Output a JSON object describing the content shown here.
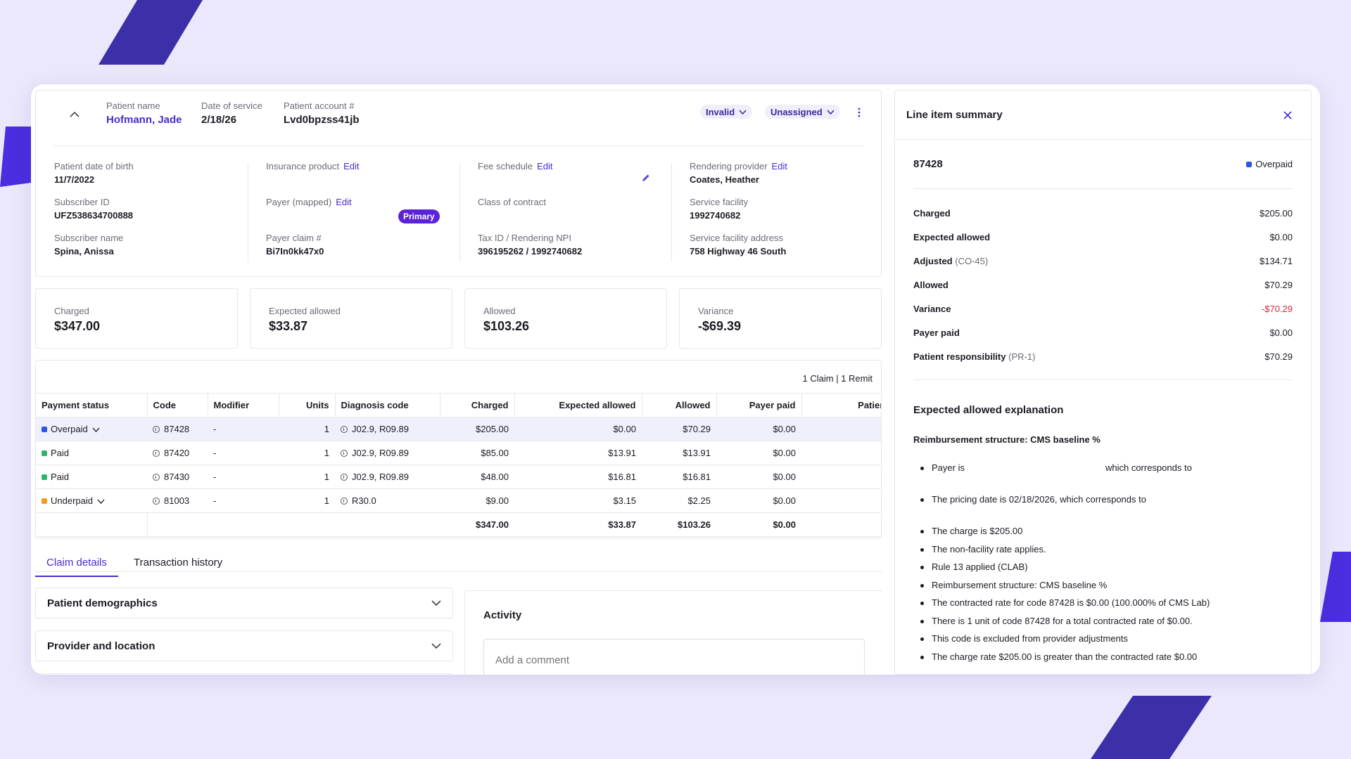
{
  "header": {
    "patient_name_label": "Patient name",
    "patient_name": "Hofmann, Jade",
    "dos_label": "Date of service",
    "dos": "2/18/26",
    "account_label": "Patient account #",
    "account": "Lvd0bpzss41jb",
    "status_pill": "Invalid",
    "assign_pill": "Unassigned"
  },
  "details": {
    "dob_label": "Patient date of birth",
    "dob": "11/7/2022",
    "subscriber_id_label": "Subscriber ID",
    "subscriber_id": "UFZ538634700888",
    "subscriber_name_label": "Subscriber name",
    "subscriber_name": "Spina, Anissa",
    "ins_product_label": "Insurance product",
    "edit": "Edit",
    "payer_mapped_label": "Payer (mapped)",
    "primary_badge": "Primary",
    "payer_claim_label": "Payer claim #",
    "payer_claim": "Bi7In0kk47x0",
    "fee_schedule_label": "Fee schedule",
    "class_label": "Class of contract",
    "tax_label": "Tax ID / Rendering NPI",
    "tax": "396195262 / 1992740682",
    "rendering_label": "Rendering provider",
    "rendering": "Coates, Heather",
    "facility_label": "Service facility",
    "facility": "1992740682",
    "facility_addr_label": "Service facility address",
    "facility_addr": "758 Highway 46 South"
  },
  "summary": [
    {
      "label": "Charged",
      "value": "$347.00"
    },
    {
      "label": "Expected allowed",
      "value": "$33.87"
    },
    {
      "label": "Allowed",
      "value": "$103.26"
    },
    {
      "label": "Variance",
      "value": "-$69.39"
    }
  ],
  "table": {
    "claim_count": "1 Claim | 1 Remit",
    "columns": [
      "Payment status",
      "Code",
      "Modifier",
      "Units",
      "Diagnosis code",
      "Charged",
      "Expected allowed",
      "Allowed",
      "Payer paid",
      "Patient"
    ],
    "rows": [
      {
        "status": "Overpaid",
        "color": "#2c55e6",
        "dropdown": true,
        "code": "87428",
        "modifier": "-",
        "units": "1",
        "dx": "J02.9, R09.89",
        "charged": "$205.00",
        "expected": "$0.00",
        "allowed": "$70.29",
        "payer_paid": "$0.00"
      },
      {
        "status": "Paid",
        "color": "#2fb56a",
        "dropdown": false,
        "code": "87420",
        "modifier": "-",
        "units": "1",
        "dx": "J02.9, R09.89",
        "charged": "$85.00",
        "expected": "$13.91",
        "allowed": "$13.91",
        "payer_paid": "$0.00"
      },
      {
        "status": "Paid",
        "color": "#2fb56a",
        "dropdown": false,
        "code": "87430",
        "modifier": "-",
        "units": "1",
        "dx": "J02.9, R09.89",
        "charged": "$48.00",
        "expected": "$16.81",
        "allowed": "$16.81",
        "payer_paid": "$0.00"
      },
      {
        "status": "Underpaid",
        "color": "#f29b1c",
        "dropdown": true,
        "code": "81003",
        "modifier": "-",
        "units": "1",
        "dx": "R30.0",
        "charged": "$9.00",
        "expected": "$3.15",
        "allowed": "$2.25",
        "payer_paid": "$0.00"
      }
    ],
    "totals": {
      "charged": "$347.00",
      "expected": "$33.87",
      "allowed": "$103.26",
      "payer_paid": "$0.00"
    }
  },
  "tabs": [
    "Claim details",
    "Transaction history"
  ],
  "accordions": [
    "Patient demographics",
    "Provider and location"
  ],
  "activity": {
    "title": "Activity",
    "placeholder": "Add a comment"
  },
  "line_item": {
    "title": "Line item summary",
    "code": "87428",
    "status": "Overpaid",
    "rows": [
      {
        "label": "Charged",
        "sub": "",
        "value": "$205.00"
      },
      {
        "label": "Expected allowed",
        "sub": "",
        "value": "$0.00"
      },
      {
        "label": "Adjusted",
        "sub": "(CO-45)",
        "value": "$134.71"
      },
      {
        "label": "Allowed",
        "sub": "",
        "value": "$70.29"
      },
      {
        "label": "Variance",
        "sub": "",
        "value": "-$70.29"
      },
      {
        "label": "Payer paid",
        "sub": "",
        "value": "$0.00"
      },
      {
        "label": "Patient responsibility",
        "sub": "(PR-1)",
        "value": "$70.29"
      }
    ],
    "explanation_title": "Expected allowed explanation",
    "structure": "Reimbursement structure: CMS baseline %",
    "bullet_payer_a": "Payer is",
    "bullet_payer_b": "which corresponds to",
    "bullet_pricing": "The pricing date is 02/18/2026, which corresponds to",
    "bullets": [
      "The charge is $205.00",
      "The non-facility rate applies.",
      "Rule 13 applied (CLAB)",
      "Reimbursement structure: CMS baseline %",
      "The contracted rate for code 87428 is $0.00 (100.000% of CMS Lab)",
      "There is 1 unit of code 87428 for a total contracted rate of $0.00.",
      "This code is excluded from provider adjustments",
      "The charge rate $205.00 is greater than the contracted rate $0.00"
    ]
  }
}
